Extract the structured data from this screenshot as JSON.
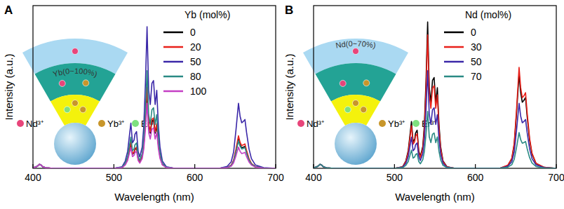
{
  "chart_data": [
    {
      "type": "line",
      "title": "A",
      "x_label": "Wavelength (nm)",
      "y_label": "Intensity (a.u.)",
      "legend_title": "Yb (mol%)",
      "legend": "upper right",
      "tick_labels": "x",
      "annotations": {
        "layer": "Yb(0~100%)",
        "ions": [
          "Nd³⁺",
          "Yb³⁺",
          "Er³⁺"
        ]
      },
      "xlim": [
        400,
        700
      ],
      "xticks": [
        400,
        500,
        600,
        700
      ],
      "ylim": [
        0,
        100
      ],
      "yticks": [],
      "x": [
        400,
        404,
        406,
        408,
        410,
        412,
        416,
        425,
        450,
        480,
        500,
        510,
        514,
        517,
        519,
        521,
        523,
        525,
        526,
        528,
        530,
        532,
        535,
        537,
        539,
        541,
        543,
        545,
        547,
        549,
        551,
        553,
        555,
        557,
        560,
        565,
        575,
        600,
        630,
        640,
        645,
        648,
        651,
        654,
        656,
        658,
        660,
        662,
        664,
        667,
        670,
        675,
        685,
        700
      ],
      "series": [
        {
          "name": "0",
          "color": "#000000",
          "values": [
            0.3,
            1,
            1.5,
            2.5,
            2,
            1,
            0.3,
            0,
            0,
            0,
            0,
            0.5,
            2.4,
            5.8,
            10.6,
            15.4,
            8.6,
            9.6,
            11.5,
            12.5,
            5.8,
            3.8,
            7.2,
            14.4,
            28.8,
            48,
            26.4,
            21.6,
            28.8,
            29.8,
            21.6,
            26.4,
            14.4,
            7.2,
            2.4,
            0.5,
            0,
            0,
            0,
            0.5,
            1.8,
            4.5,
            10.8,
            18,
            14.4,
            12.6,
            13,
            13.5,
            9.9,
            5.4,
            2.7,
            0.9,
            0.2,
            0
          ]
        },
        {
          "name": "20",
          "color": "#e8201a",
          "values": [
            0.3,
            1,
            1.5,
            2.5,
            2,
            1,
            0.3,
            0,
            0,
            0,
            0,
            0.5,
            2.5,
            6,
            11,
            16,
            9,
            10,
            12,
            13,
            6,
            4,
            7.5,
            15,
            30,
            50,
            27.5,
            22.5,
            30,
            31,
            22.5,
            27.5,
            15,
            7.5,
            2.5,
            0.5,
            0,
            0,
            0,
            0.6,
            2,
            5,
            12,
            20,
            16,
            14,
            14.4,
            15,
            11,
            6,
            3,
            1,
            0.2,
            0
          ]
        },
        {
          "name": "50",
          "color": "#3b28a8",
          "values": [
            0.3,
            1,
            1.5,
            2.5,
            2,
            1,
            0.3,
            0,
            0,
            0,
            0,
            0.9,
            4.4,
            10.4,
            19.1,
            27.8,
            15.7,
            17.4,
            20.9,
            22.6,
            10.4,
            7,
            13.1,
            26.1,
            52.2,
            87,
            47.9,
            39.2,
            52.2,
            53.9,
            39.2,
            47.9,
            26.1,
            13.1,
            4.4,
            0.9,
            0,
            0,
            0,
            1.2,
            4,
            10,
            24,
            40,
            32,
            28,
            28.8,
            30,
            22,
            12,
            6,
            2,
            0.4,
            0
          ]
        },
        {
          "name": "80",
          "color": "#2a8a84",
          "values": [
            0.3,
            1,
            1.5,
            2.5,
            2,
            1,
            0.3,
            0,
            0,
            0,
            0,
            0.6,
            3,
            7.2,
            13.2,
            19.2,
            10.8,
            12,
            14.4,
            15.6,
            7.2,
            4.8,
            9,
            18,
            36,
            60,
            33,
            27,
            36,
            37.2,
            27,
            33,
            18,
            9,
            3,
            0.6,
            0,
            0,
            0,
            0.5,
            1.7,
            4.3,
            10.2,
            17,
            13.6,
            11.9,
            12.2,
            12.8,
            9.4,
            5.1,
            2.6,
            0.9,
            0.2,
            0
          ]
        },
        {
          "name": "100",
          "color": "#c43fc4",
          "values": [
            0.3,
            1,
            1.5,
            2.5,
            2,
            1,
            0.3,
            0,
            0,
            0,
            0,
            0.4,
            2,
            4.8,
            8.8,
            12.8,
            7.2,
            8,
            9.6,
            10.4,
            4.8,
            3.2,
            6,
            12,
            24,
            40,
            22,
            18,
            24,
            24.8,
            18,
            22,
            12,
            6,
            2,
            0.4,
            0,
            0,
            0,
            0.4,
            1.3,
            3.3,
            7.8,
            13,
            10.4,
            9.1,
            9.4,
            9.8,
            7.2,
            3.9,
            2,
            0.7,
            0.1,
            0
          ]
        }
      ]
    },
    {
      "type": "line",
      "title": "B",
      "x_label": "Wavelength (nm)",
      "y_label": "Intensity (a.u.)",
      "legend_title": "Nd (mol%)",
      "legend": "upper right",
      "tick_labels": "x",
      "annotations": {
        "layer": "Nd(0~70%)",
        "ions": [
          "Nd³⁺",
          "Yb³⁺",
          "Er³⁺"
        ]
      },
      "xlim": [
        400,
        700
      ],
      "xticks": [
        400,
        500,
        600,
        700
      ],
      "ylim": [
        0,
        100
      ],
      "yticks": [],
      "x": [
        400,
        404,
        406,
        408,
        410,
        412,
        416,
        425,
        450,
        480,
        500,
        510,
        514,
        517,
        519,
        521,
        523,
        525,
        526,
        528,
        530,
        532,
        535,
        537,
        539,
        541,
        543,
        545,
        547,
        549,
        551,
        553,
        555,
        557,
        560,
        565,
        575,
        600,
        630,
        640,
        645,
        648,
        651,
        654,
        656,
        658,
        660,
        662,
        664,
        667,
        670,
        675,
        685,
        700
      ],
      "series": [
        {
          "name": "0",
          "color": "#000000",
          "values": [
            0.3,
            1,
            1.5,
            2.5,
            2,
            1,
            0.3,
            0,
            0,
            0,
            0,
            0.9,
            4.5,
            10.8,
            19.8,
            28.8,
            16.2,
            18,
            21.6,
            23.4,
            10.8,
            7.2,
            13.5,
            27,
            54,
            90,
            49.5,
            40.5,
            54,
            55.8,
            40.5,
            49.5,
            27,
            13.5,
            4.5,
            0.9,
            0,
            0,
            0,
            1.7,
            5.8,
            14.5,
            34.8,
            58,
            46.4,
            40.6,
            41.8,
            43.5,
            31.9,
            17.4,
            8.7,
            2.9,
            0.6,
            0
          ]
        },
        {
          "name": "30",
          "color": "#e8201a",
          "values": [
            0.3,
            1,
            1.5,
            2.5,
            2,
            1,
            0.3,
            0,
            0,
            0,
            0,
            0.8,
            4.1,
            9.8,
            18,
            26.2,
            14.8,
            16.4,
            19.7,
            21.3,
            9.8,
            6.6,
            12.3,
            24.6,
            49.2,
            82,
            45.1,
            36.9,
            49.2,
            50.8,
            36.9,
            45.1,
            24.6,
            12.3,
            4.1,
            0.8,
            0,
            0,
            0,
            1.9,
            6.2,
            15.5,
            37.2,
            62,
            49.6,
            43.4,
            44.6,
            46.5,
            34.1,
            18.6,
            9.3,
            3.1,
            0.6,
            0
          ]
        },
        {
          "name": "50",
          "color": "#3b28a8",
          "values": [
            0.3,
            1,
            1.5,
            2.5,
            2,
            1,
            0.3,
            0,
            0,
            0,
            0,
            0.6,
            3,
            7.2,
            13.2,
            19.2,
            10.8,
            12,
            14.4,
            15.6,
            7.2,
            4.8,
            9,
            18,
            36,
            60,
            33,
            27,
            36,
            37.2,
            27,
            33,
            18,
            9,
            3,
            0.6,
            0,
            0,
            0,
            1.2,
            4,
            10,
            24,
            40,
            32,
            28,
            28.8,
            30,
            22,
            12,
            6,
            2,
            0.4,
            0
          ]
        },
        {
          "name": "70",
          "color": "#2a8a84",
          "values": [
            0.3,
            1,
            1.5,
            2.5,
            2,
            1,
            0.3,
            0,
            0,
            0,
            0,
            0.4,
            1.8,
            4.2,
            7.7,
            11.2,
            6.3,
            7,
            8.4,
            9.1,
            4.2,
            2.8,
            5.3,
            10.5,
            21,
            35,
            19.3,
            15.8,
            21,
            21.7,
            15.8,
            19.3,
            10.5,
            5.3,
            1.8,
            0.4,
            0,
            0,
            0,
            0.7,
            2.2,
            5.5,
            13.2,
            22,
            17.6,
            15.4,
            15.8,
            16.5,
            12.1,
            6.6,
            3.3,
            1.1,
            0.2,
            0
          ]
        }
      ]
    }
  ]
}
